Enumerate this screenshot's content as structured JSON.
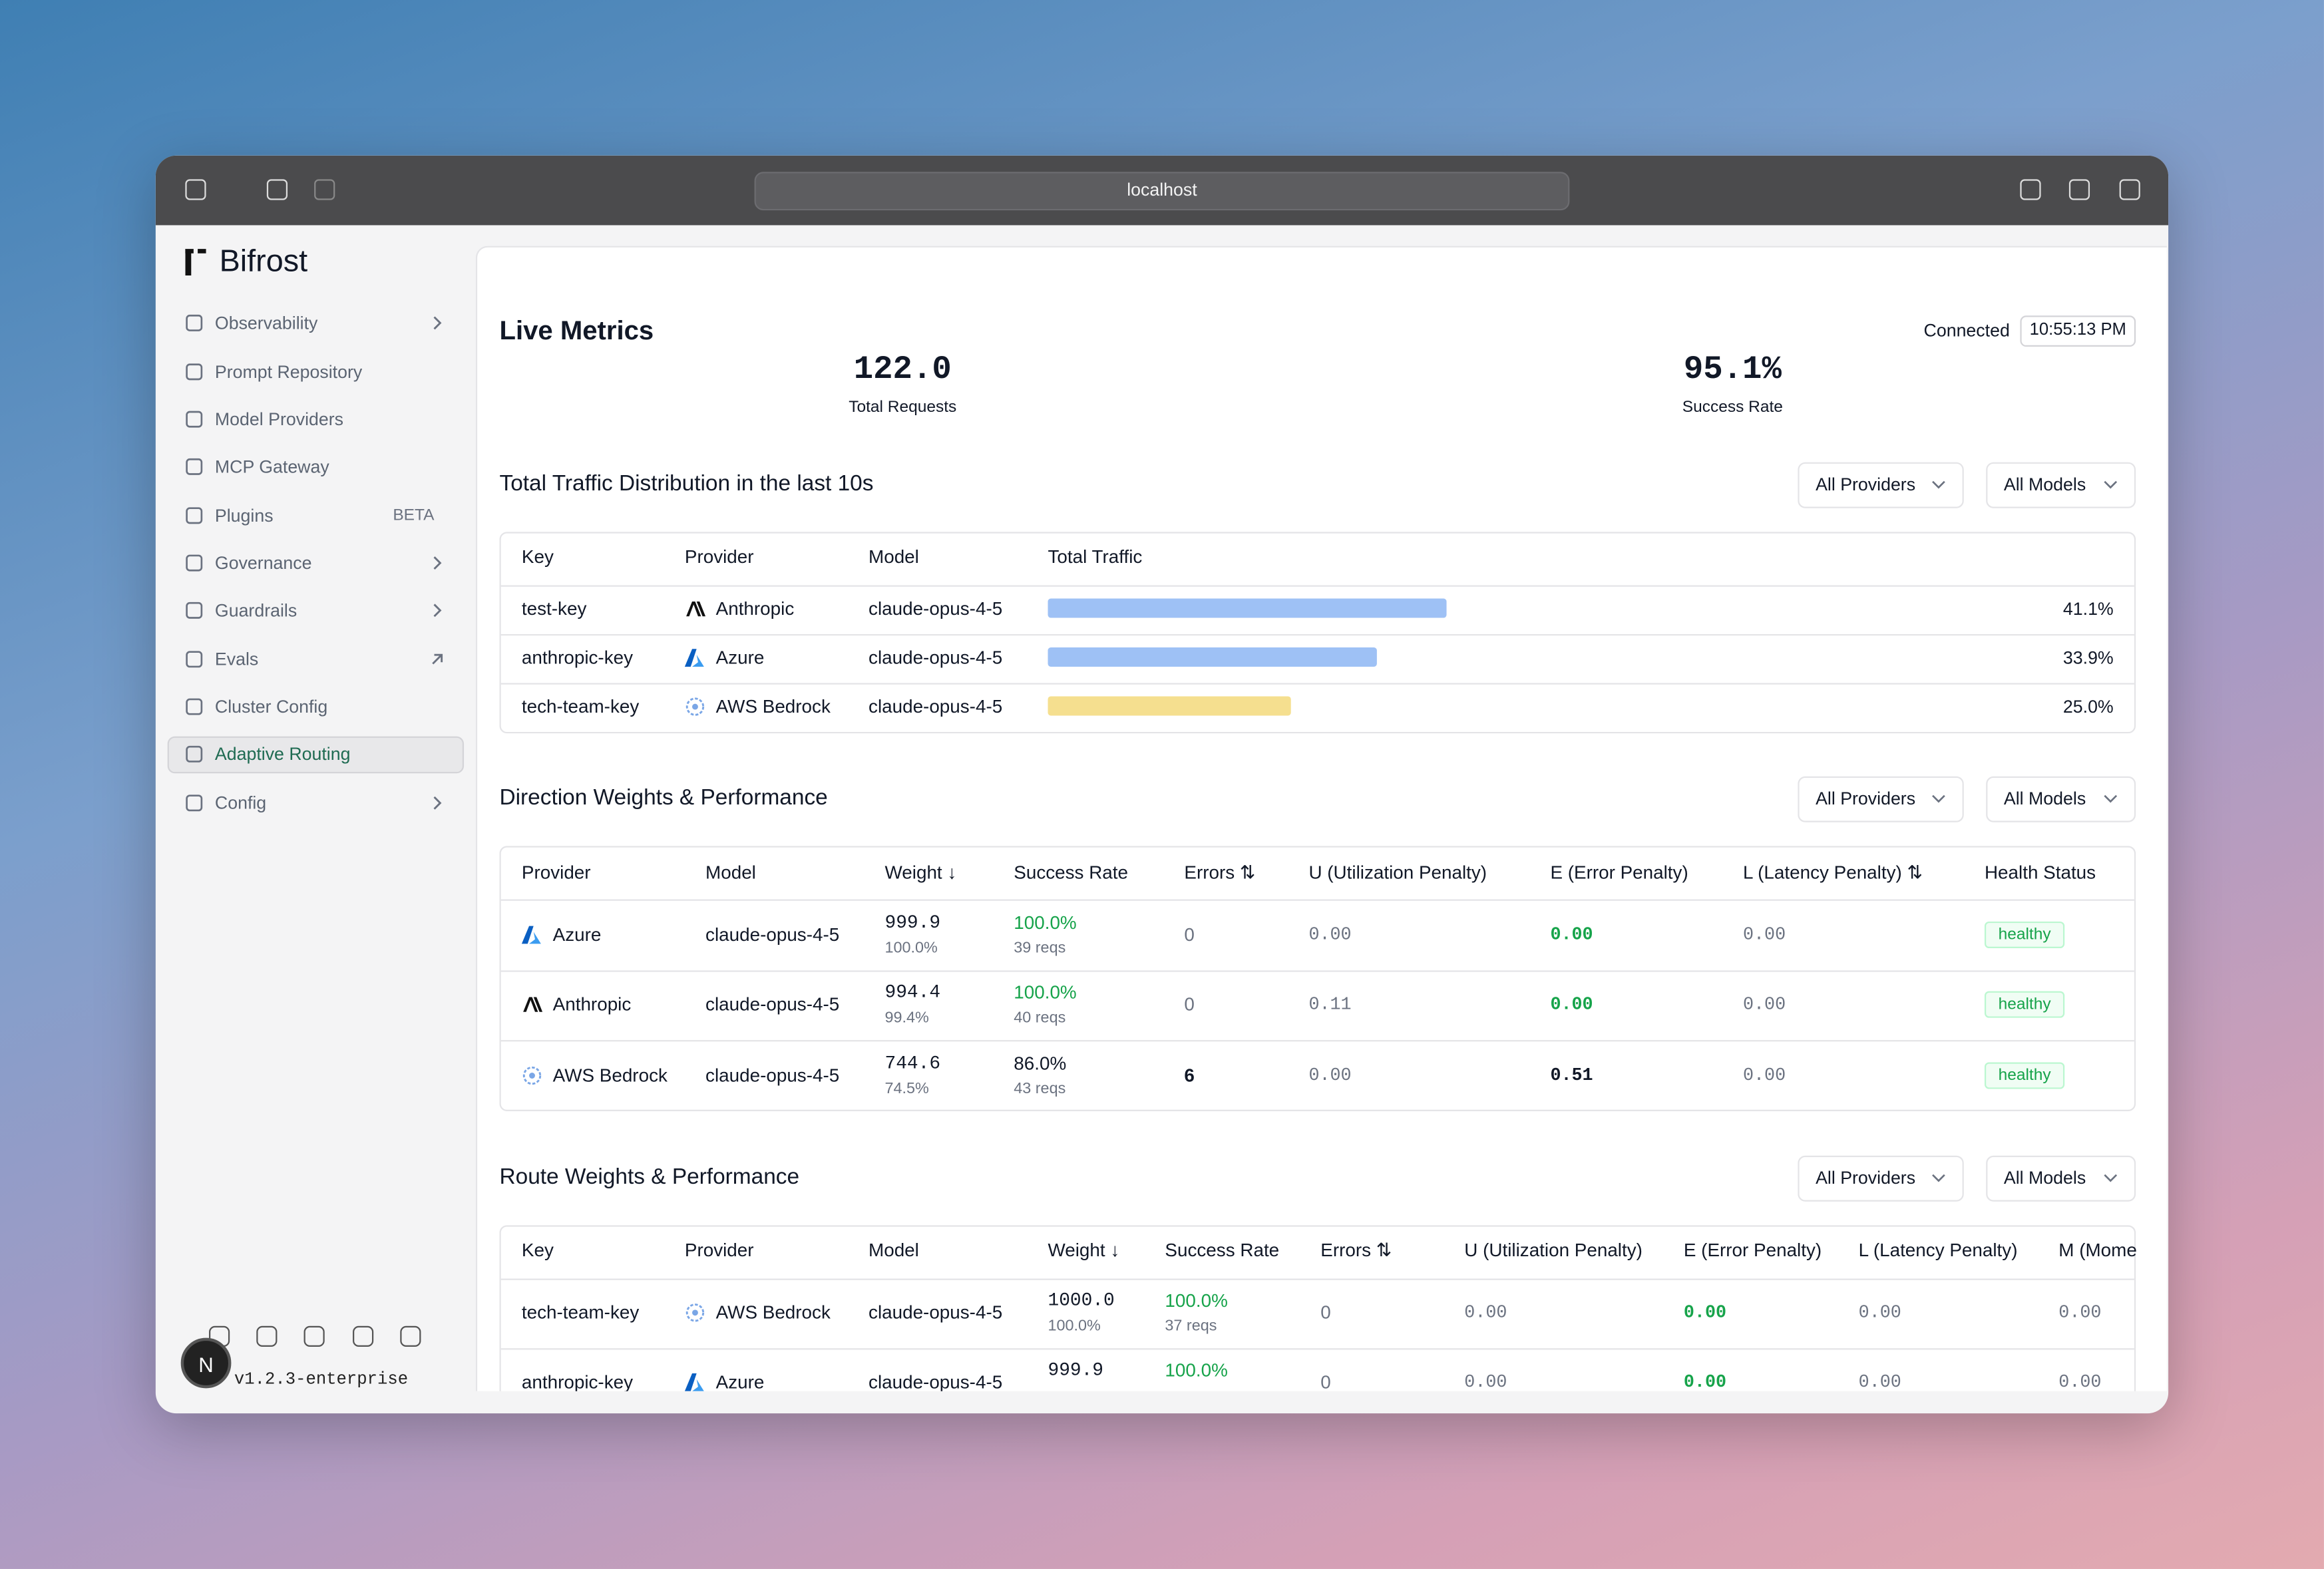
{
  "browser": {
    "url": "localhost"
  },
  "sidebar": {
    "brand": "Bifrost",
    "items": [
      {
        "label": "Observability",
        "chevron": true
      },
      {
        "label": "Prompt Repository"
      },
      {
        "label": "Model Providers"
      },
      {
        "label": "MCP Gateway"
      },
      {
        "label": "Plugins",
        "badge": "BETA"
      },
      {
        "label": "Governance",
        "chevron": true
      },
      {
        "label": "Guardrails",
        "chevron": true
      },
      {
        "label": "Evals",
        "external": true
      },
      {
        "label": "Cluster Config"
      },
      {
        "label": "Adaptive Routing",
        "active": true
      },
      {
        "label": "Config",
        "chevron": true
      }
    ],
    "avatar": "N",
    "version": "v1.2.3-enterprise"
  },
  "live_metrics": {
    "title": "Live Metrics",
    "status": "Connected",
    "time": "10:55:13 PM",
    "stats": [
      {
        "value": "122.0",
        "label": "Total Requests"
      },
      {
        "value": "95.1%",
        "label": "Success Rate"
      }
    ]
  },
  "traffic": {
    "title": "Total Traffic Distribution in the last 10s",
    "filters": [
      "All Providers",
      "All Models"
    ],
    "columns": [
      "Key",
      "Provider",
      "Model",
      "Total Traffic"
    ],
    "rows": [
      {
        "key": "test-key",
        "provider": "Anthropic",
        "model": "claude-opus-4-5",
        "share": 41.1,
        "share_label": "41.1%",
        "color": "#9ec1f5"
      },
      {
        "key": "anthropic-key",
        "provider": "Azure",
        "model": "claude-opus-4-5",
        "share": 33.9,
        "share_label": "33.9%",
        "color": "#9ec1f5"
      },
      {
        "key": "tech-team-key",
        "provider": "AWS Bedrock",
        "model": "claude-opus-4-5",
        "share": 25.0,
        "share_label": "25.0%",
        "color": "#f5df8f"
      }
    ]
  },
  "direction": {
    "title": "Direction Weights & Performance",
    "filters": [
      "All Providers",
      "All Models"
    ],
    "columns": [
      "Provider",
      "Model",
      "Weight ↓",
      "Success Rate",
      "Errors ⇅",
      "U (Utilization Penalty)",
      "E (Error Penalty)",
      "L (Latency Penalty) ⇅",
      "Health Status"
    ],
    "rows": [
      {
        "provider": "Azure",
        "model": "claude-opus-4-5",
        "weight": "999.9",
        "weight_pct": "100.0%",
        "success": "100.0%",
        "success_color": "#16a34a",
        "reqs": "39 reqs",
        "errors": "0",
        "u": "0.00",
        "e": "0.00",
        "e_color": "#16a34a",
        "l": "0.00",
        "health": "healthy"
      },
      {
        "provider": "Anthropic",
        "model": "claude-opus-4-5",
        "weight": "994.4",
        "weight_pct": "99.4%",
        "success": "100.0%",
        "success_color": "#16a34a",
        "reqs": "40 reqs",
        "errors": "0",
        "u": "0.11",
        "e": "0.00",
        "e_color": "#16a34a",
        "l": "0.00",
        "health": "healthy"
      },
      {
        "provider": "AWS Bedrock",
        "model": "claude-opus-4-5",
        "weight": "744.6",
        "weight_pct": "74.5%",
        "success": "86.0%",
        "success_color": "#111827",
        "reqs": "43 reqs",
        "errors": "6",
        "u": "0.00",
        "e": "0.51",
        "e_color": "#111827",
        "l": "0.00",
        "health": "healthy"
      }
    ]
  },
  "route": {
    "title": "Route Weights & Performance",
    "filters": [
      "All Providers",
      "All Models"
    ],
    "columns": [
      "Key",
      "Provider",
      "Model",
      "Weight ↓",
      "Success Rate",
      "Errors ⇅",
      "U (Utilization Penalty)",
      "E (Error Penalty)",
      "L (Latency Penalty)",
      "M (Mome"
    ],
    "rows": [
      {
        "key": "tech-team-key",
        "provider": "AWS Bedrock",
        "model": "claude-opus-4-5",
        "weight": "1000.0",
        "weight_pct": "100.0%",
        "success": "100.0%",
        "reqs": "37 reqs",
        "errors": "0",
        "u": "0.00",
        "e": "0.00",
        "l": "0.00",
        "m": "0.00"
      },
      {
        "key": "anthropic-key",
        "provider": "Azure",
        "model": "claude-opus-4-5",
        "weight": "999.9",
        "success": "100.0%",
        "errors": "0",
        "u": "0.00",
        "e": "0.00",
        "l": "0.00",
        "m": "0.00"
      }
    ]
  }
}
